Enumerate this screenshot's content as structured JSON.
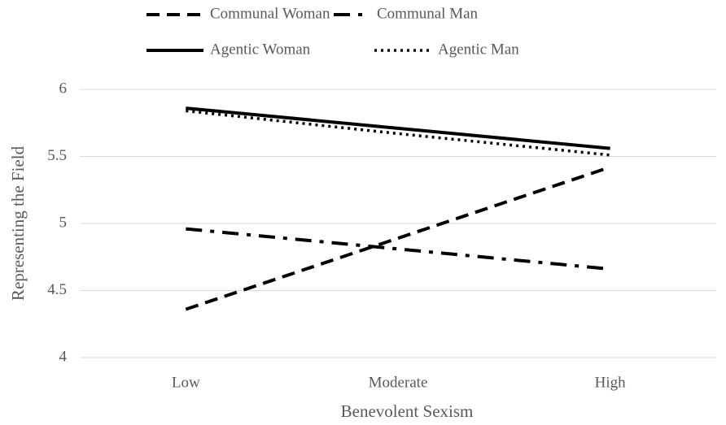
{
  "chart_data": {
    "type": "line",
    "x_label": "Benevolent Sexism",
    "y_label": "Representing the Field",
    "categories": [
      "Low",
      "Moderate",
      "High"
    ],
    "series": [
      {
        "name": "Communal Woman",
        "color": "#000000",
        "dash": "dashed",
        "values": [
          4.36,
          4.89,
          5.42
        ]
      },
      {
        "name": "Communal Man",
        "color": "#000000",
        "dash": "dashdot",
        "values": [
          4.96,
          4.81,
          4.66
        ]
      },
      {
        "name": "Agentic Woman",
        "color": "#000000",
        "dash": "solid",
        "values": [
          5.86,
          5.71,
          5.56
        ]
      },
      {
        "name": "Agentic Man",
        "color": "#000000",
        "dash": "dotted",
        "values": [
          5.84,
          5.67,
          5.51
        ]
      }
    ],
    "ylim": [
      4,
      6
    ],
    "yticks": [
      4,
      4.5,
      5,
      5.5,
      6
    ],
    "grid": true,
    "legend": "top"
  }
}
